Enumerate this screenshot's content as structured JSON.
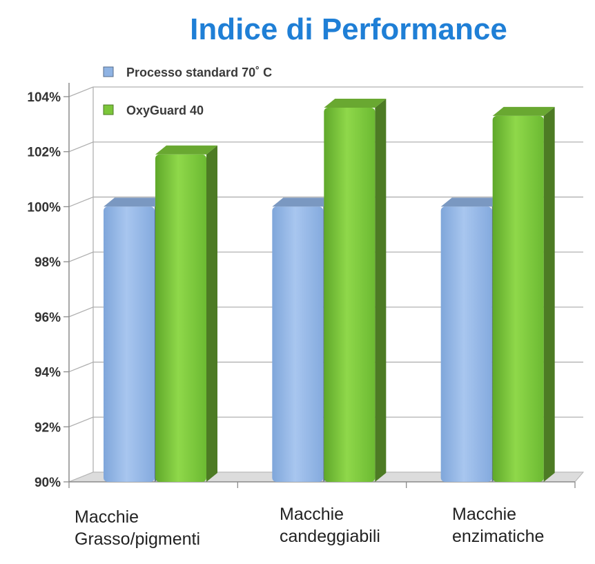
{
  "chart_data": {
    "type": "bar",
    "title": "Indice di Performance",
    "categories": [
      "Macchie Grasso/pigmenti",
      "Macchie candeggiabili",
      "Macchie enzimatiche"
    ],
    "category_lines": [
      [
        "Macchie",
        "Grasso/pigmenti"
      ],
      [
        "Macchie",
        "candeggiabili"
      ],
      [
        "Macchie",
        "enzimatiche"
      ]
    ],
    "series": [
      {
        "name": "Processo standard 70°C",
        "legend_label": "Processo standard 70˚ C",
        "values": [
          100,
          100,
          100
        ],
        "color": "#8fb3e3"
      },
      {
        "name": "OxyGuard 40",
        "legend_label": "OxyGuard 40",
        "values": [
          101.9,
          103.6,
          103.3
        ],
        "color": "#7cc63a"
      }
    ],
    "ylim": [
      90,
      104
    ],
    "yticks": [
      90,
      92,
      94,
      96,
      98,
      100,
      102,
      104
    ],
    "ytick_labels": [
      "90%",
      "92%",
      "94%",
      "96%",
      "98%",
      "100%",
      "102%",
      "104%"
    ],
    "grid": true,
    "legend_position": "top-left",
    "xlabel": "",
    "ylabel": ""
  }
}
